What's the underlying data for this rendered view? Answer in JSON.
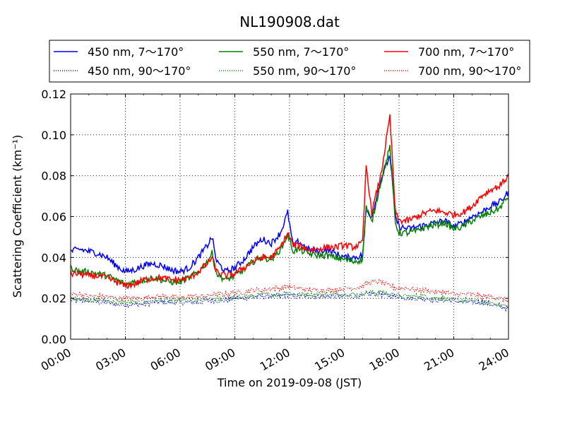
{
  "chart_data": {
    "type": "line",
    "title": "NL190908.dat",
    "xlabel": "Time on 2019-09-08 (JST)",
    "ylabel": "Scattering Coefficient (km⁻¹)",
    "x_range_hours": [
      0,
      24
    ],
    "ylim": [
      0.0,
      0.12
    ],
    "grid": true,
    "legend_placement": "top (above plot)",
    "x_ticks": [
      "00:00",
      "03:00",
      "06:00",
      "09:00",
      "12:00",
      "15:00",
      "18:00",
      "21:00",
      "24:00"
    ],
    "y_ticks": [
      "0.00",
      "0.02",
      "0.04",
      "0.06",
      "0.08",
      "0.10",
      "0.12"
    ],
    "x_hours": [
      0,
      0.5,
      1,
      1.5,
      2,
      2.5,
      3,
      3.5,
      4,
      4.5,
      5,
      5.5,
      6,
      6.5,
      7,
      7.5,
      7.75,
      8,
      8.5,
      9,
      9.5,
      10,
      10.5,
      11,
      11.5,
      11.9,
      12.2,
      12.5,
      13,
      13.5,
      14,
      14.5,
      15,
      15.5,
      16,
      16.2,
      16.5,
      17,
      17.5,
      17.8,
      18,
      18.5,
      19,
      19.5,
      20,
      20.5,
      21,
      21.5,
      22,
      22.5,
      23,
      23.5,
      24
    ],
    "series": [
      {
        "name": "450 nm, 7～170°",
        "color": "#0000ff",
        "style": "solid",
        "values": [
          0.043,
          0.044,
          0.043,
          0.042,
          0.04,
          0.036,
          0.033,
          0.034,
          0.036,
          0.037,
          0.036,
          0.034,
          0.033,
          0.035,
          0.04,
          0.046,
          0.05,
          0.038,
          0.033,
          0.035,
          0.039,
          0.045,
          0.049,
          0.047,
          0.052,
          0.062,
          0.045,
          0.048,
          0.044,
          0.043,
          0.044,
          0.042,
          0.04,
          0.04,
          0.041,
          0.063,
          0.06,
          0.078,
          0.09,
          0.06,
          0.055,
          0.054,
          0.055,
          0.056,
          0.057,
          0.058,
          0.055,
          0.057,
          0.06,
          0.062,
          0.065,
          0.067,
          0.072
        ]
      },
      {
        "name": "450 nm, 90～170°",
        "color": "#0000ff",
        "style": "dotted",
        "values": [
          0.019,
          0.019,
          0.019,
          0.018,
          0.018,
          0.017,
          0.017,
          0.017,
          0.017,
          0.018,
          0.018,
          0.018,
          0.018,
          0.018,
          0.018,
          0.019,
          0.019,
          0.019,
          0.019,
          0.02,
          0.02,
          0.021,
          0.021,
          0.021,
          0.021,
          0.022,
          0.021,
          0.021,
          0.021,
          0.021,
          0.021,
          0.021,
          0.021,
          0.021,
          0.021,
          0.022,
          0.022,
          0.022,
          0.021,
          0.021,
          0.021,
          0.02,
          0.02,
          0.02,
          0.019,
          0.019,
          0.019,
          0.018,
          0.018,
          0.018,
          0.017,
          0.016,
          0.015
        ]
      },
      {
        "name": "550 nm, 7～170°",
        "color": "#008000",
        "style": "solid",
        "values": [
          0.035,
          0.033,
          0.033,
          0.032,
          0.031,
          0.029,
          0.027,
          0.028,
          0.029,
          0.03,
          0.029,
          0.028,
          0.028,
          0.03,
          0.033,
          0.038,
          0.042,
          0.032,
          0.029,
          0.031,
          0.034,
          0.038,
          0.04,
          0.039,
          0.044,
          0.051,
          0.043,
          0.044,
          0.042,
          0.041,
          0.041,
          0.04,
          0.039,
          0.038,
          0.039,
          0.065,
          0.057,
          0.077,
          0.094,
          0.057,
          0.052,
          0.052,
          0.053,
          0.055,
          0.056,
          0.057,
          0.054,
          0.055,
          0.058,
          0.06,
          0.062,
          0.064,
          0.07
        ]
      },
      {
        "name": "550 nm, 90～170°",
        "color": "#008000",
        "style": "dotted",
        "values": [
          0.02,
          0.02,
          0.019,
          0.019,
          0.019,
          0.018,
          0.018,
          0.018,
          0.018,
          0.019,
          0.019,
          0.019,
          0.019,
          0.019,
          0.019,
          0.02,
          0.02,
          0.02,
          0.02,
          0.02,
          0.021,
          0.021,
          0.022,
          0.022,
          0.022,
          0.023,
          0.022,
          0.022,
          0.022,
          0.022,
          0.022,
          0.022,
          0.022,
          0.022,
          0.022,
          0.023,
          0.023,
          0.023,
          0.022,
          0.022,
          0.021,
          0.021,
          0.021,
          0.021,
          0.02,
          0.02,
          0.019,
          0.019,
          0.019,
          0.018,
          0.018,
          0.017,
          0.016
        ]
      },
      {
        "name": "700 nm, 7～170°",
        "color": "#ff0000",
        "style": "solid",
        "values": [
          0.032,
          0.032,
          0.031,
          0.031,
          0.03,
          0.028,
          0.026,
          0.027,
          0.029,
          0.03,
          0.03,
          0.029,
          0.029,
          0.03,
          0.033,
          0.037,
          0.04,
          0.033,
          0.031,
          0.032,
          0.035,
          0.038,
          0.04,
          0.04,
          0.045,
          0.052,
          0.046,
          0.046,
          0.044,
          0.044,
          0.045,
          0.045,
          0.046,
          0.045,
          0.047,
          0.085,
          0.062,
          0.08,
          0.109,
          0.062,
          0.058,
          0.058,
          0.06,
          0.062,
          0.063,
          0.062,
          0.061,
          0.062,
          0.065,
          0.07,
          0.073,
          0.075,
          0.08
        ]
      },
      {
        "name": "700 nm, 90～170°",
        "color": "#ff0000",
        "style": "dotted",
        "values": [
          0.022,
          0.022,
          0.021,
          0.021,
          0.021,
          0.02,
          0.02,
          0.02,
          0.02,
          0.021,
          0.021,
          0.021,
          0.02,
          0.021,
          0.021,
          0.021,
          0.022,
          0.022,
          0.022,
          0.023,
          0.023,
          0.024,
          0.024,
          0.025,
          0.025,
          0.026,
          0.025,
          0.025,
          0.024,
          0.024,
          0.024,
          0.024,
          0.025,
          0.025,
          0.026,
          0.027,
          0.028,
          0.028,
          0.026,
          0.025,
          0.025,
          0.025,
          0.024,
          0.024,
          0.023,
          0.023,
          0.022,
          0.022,
          0.022,
          0.021,
          0.021,
          0.02,
          0.019
        ]
      }
    ]
  }
}
